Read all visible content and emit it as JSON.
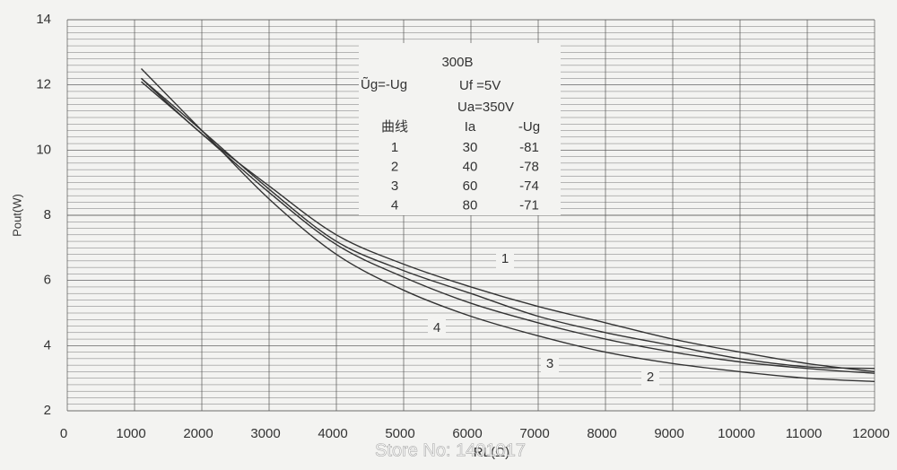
{
  "chart_data": {
    "type": "line",
    "xlabel": "RL(Ω)",
    "ylabel": "Pout(W)",
    "x": [
      1100,
      2000,
      3000,
      4000,
      5000,
      6000,
      7000,
      8000,
      9000,
      10000,
      11000,
      12000
    ],
    "series": [
      {
        "name": "1",
        "color": "#333333",
        "values": [
          12.2,
          10.5,
          8.9,
          7.4,
          6.5,
          5.8,
          5.2,
          4.7,
          4.2,
          3.8,
          3.45,
          3.2
        ]
      },
      {
        "name": "2",
        "color": "#333333",
        "values": [
          12.2,
          10.6,
          8.8,
          7.2,
          6.3,
          5.6,
          4.9,
          4.4,
          4.0,
          3.6,
          3.35,
          3.3
        ]
      },
      {
        "name": "3",
        "color": "#333333",
        "values": [
          12.1,
          10.5,
          8.7,
          7.1,
          6.1,
          5.3,
          4.7,
          4.2,
          3.8,
          3.5,
          3.3,
          3.15
        ]
      },
      {
        "name": "4",
        "color": "#333333",
        "values": [
          12.5,
          10.6,
          8.5,
          6.8,
          5.7,
          4.9,
          4.3,
          3.8,
          3.45,
          3.2,
          3.0,
          2.9
        ]
      }
    ],
    "xlim": [
      0,
      12000
    ],
    "ylim": [
      2,
      14
    ],
    "xticks": [
      0,
      1000,
      2000,
      3000,
      4000,
      5000,
      6000,
      7000,
      8000,
      9000,
      10000,
      11000,
      12000
    ],
    "yticks": [
      2,
      4,
      6,
      8,
      10,
      12,
      14
    ],
    "grid": true,
    "annotation": {
      "title": "300B",
      "ug": "Ũg=-Ug",
      "uf": "Uf =5V",
      "ua": "Ua=350V",
      "header": [
        "曲线",
        "Ia",
        "-Ug"
      ],
      "rows": [
        [
          "1",
          "30",
          "-81"
        ],
        [
          "2",
          "40",
          "-78"
        ],
        [
          "3",
          "60",
          "-74"
        ],
        [
          "4",
          "80",
          "-71"
        ]
      ]
    },
    "watermark": "Store No: 1401017"
  }
}
